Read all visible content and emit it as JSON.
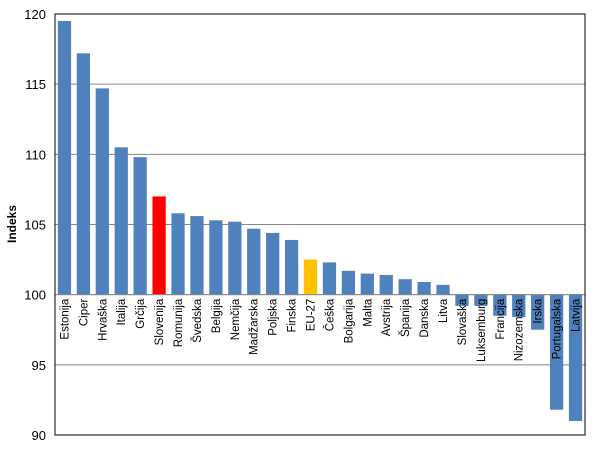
{
  "chart_data": {
    "type": "bar",
    "title": "",
    "xlabel": "",
    "ylabel": "Indeks",
    "ylim": [
      90,
      120
    ],
    "yticks": [
      90,
      95,
      100,
      105,
      110,
      115,
      120
    ],
    "baseline": 100,
    "grid": true,
    "legend": "none",
    "colors": {
      "default": "#4F81BD",
      "highlight": "#FF0000",
      "average": "#FFC000",
      "gridline": "#868686",
      "plot_border": "#000000"
    },
    "categories": [
      "Estonija",
      "Ciper",
      "Hrvaška",
      "Italija",
      "Grčija",
      "Slovenija",
      "Romunija",
      "Švedska",
      "Belgija",
      "Nemčija",
      "Madžarska",
      "Poljska",
      "Finska",
      "EU-27",
      "Češka",
      "Bolgarija",
      "Malta",
      "Avstrija",
      "Španija",
      "Danska",
      "Litva",
      "Slovaška",
      "Luksemburg",
      "Francija",
      "Nizozemska",
      "Irska",
      "Portugalska",
      "Latvija"
    ],
    "values": [
      119.5,
      117.2,
      114.7,
      110.5,
      109.8,
      107.0,
      105.8,
      105.6,
      105.3,
      105.2,
      104.7,
      104.4,
      103.9,
      102.5,
      102.3,
      101.7,
      101.5,
      101.4,
      101.1,
      100.9,
      100.7,
      99.2,
      99.2,
      98.5,
      98.4,
      97.5,
      91.8,
      91.0
    ],
    "bar_colors": [
      "#4F81BD",
      "#4F81BD",
      "#4F81BD",
      "#4F81BD",
      "#4F81BD",
      "#FF0000",
      "#4F81BD",
      "#4F81BD",
      "#4F81BD",
      "#4F81BD",
      "#4F81BD",
      "#4F81BD",
      "#4F81BD",
      "#FFC000",
      "#4F81BD",
      "#4F81BD",
      "#4F81BD",
      "#4F81BD",
      "#4F81BD",
      "#4F81BD",
      "#4F81BD",
      "#4F81BD",
      "#4F81BD",
      "#4F81BD",
      "#4F81BD",
      "#4F81BD",
      "#4F81BD",
      "#4F81BD"
    ]
  }
}
